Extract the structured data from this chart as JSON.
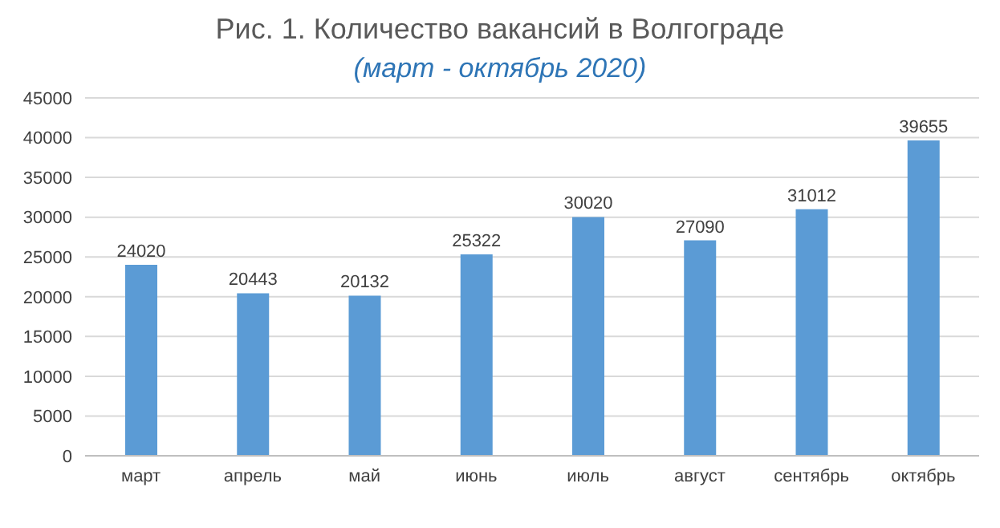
{
  "chart_data": {
    "type": "bar",
    "title": "Рис. 1. Количество вакансий в Волгограде",
    "subtitle": "(март - октябрь 2020)",
    "categories": [
      "март",
      "апрель",
      "май",
      "июнь",
      "июль",
      "август",
      "сентябрь",
      "октябрь"
    ],
    "values": [
      24020,
      20443,
      20132,
      25322,
      30020,
      27090,
      31012,
      39655
    ],
    "color": "#5b9bd5",
    "ylim": [
      0,
      45000
    ],
    "yticks": [
      0,
      5000,
      10000,
      15000,
      20000,
      25000,
      30000,
      35000,
      40000,
      45000
    ],
    "grid": "y",
    "data_labels": true
  }
}
